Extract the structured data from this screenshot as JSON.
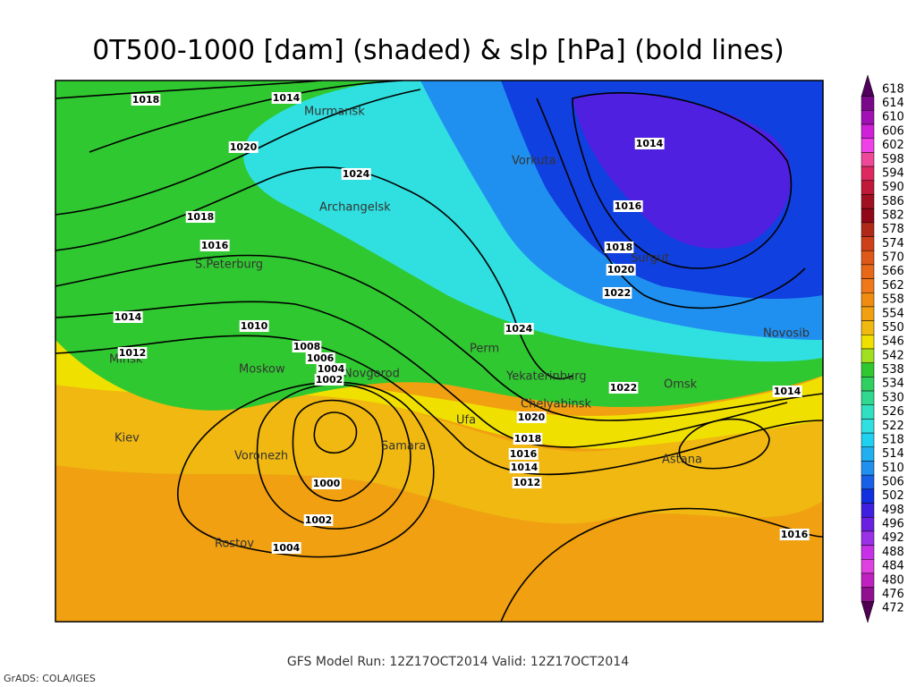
{
  "header": {
    "title": "0T500-1000 [dam] (shaded) & slp [hPa] (bold lines)"
  },
  "footer": {
    "run": "GFS Model Run: 12Z17OCT2014 Valid: 12Z17OCT2014",
    "credit": "GrADS: COLA/IGES"
  },
  "colorbar": [
    {
      "label": "618",
      "color": "#50005a"
    },
    {
      "label": "614",
      "color": "#7a0a8a"
    },
    {
      "label": "610",
      "color": "#a010b4"
    },
    {
      "label": "606",
      "color": "#d020d8"
    },
    {
      "label": "602",
      "color": "#f040e8"
    },
    {
      "label": "598",
      "color": "#f04898"
    },
    {
      "label": "594",
      "color": "#e02860"
    },
    {
      "label": "590",
      "color": "#c01838"
    },
    {
      "label": "586",
      "color": "#a01020"
    },
    {
      "label": "582",
      "color": "#900818"
    },
    {
      "label": "578",
      "color": "#b02818"
    },
    {
      "label": "574",
      "color": "#d04018"
    },
    {
      "label": "570",
      "color": "#e05818"
    },
    {
      "label": "566",
      "color": "#e86818"
    },
    {
      "label": "562",
      "color": "#f07818"
    },
    {
      "label": "558",
      "color": "#f08c10"
    },
    {
      "label": "554",
      "color": "#f0a010"
    },
    {
      "label": "550",
      "color": "#f0b810"
    },
    {
      "label": "546",
      "color": "#f0e000"
    },
    {
      "label": "542",
      "color": "#a0e020"
    },
    {
      "label": "538",
      "color": "#30c830"
    },
    {
      "label": "534",
      "color": "#30d060"
    },
    {
      "label": "530",
      "color": "#30d890"
    },
    {
      "label": "526",
      "color": "#30e0c0"
    },
    {
      "label": "522",
      "color": "#30e0e0"
    },
    {
      "label": "518",
      "color": "#20d0f0"
    },
    {
      "label": "514",
      "color": "#20b0f0"
    },
    {
      "label": "510",
      "color": "#2090f0"
    },
    {
      "label": "506",
      "color": "#1860e8"
    },
    {
      "label": "502",
      "color": "#1030e0"
    },
    {
      "label": "498",
      "color": "#4020e0"
    },
    {
      "label": "496",
      "color": "#6a20e0"
    },
    {
      "label": "492",
      "color": "#9a30e8"
    },
    {
      "label": "488",
      "color": "#c830e8"
    },
    {
      "label": "484",
      "color": "#e040e0"
    },
    {
      "label": "480",
      "color": "#c020c0"
    },
    {
      "label": "476",
      "color": "#901090"
    },
    {
      "label": "472",
      "color": "#500050"
    }
  ],
  "isobars": [
    "1018",
    "1014",
    "1020",
    "1024",
    "1018",
    "1016",
    "1014",
    "1010",
    "1012",
    "1008",
    "1006",
    "1004",
    "1002",
    "1014",
    "1016",
    "1018",
    "1020",
    "1022",
    "1024",
    "1022",
    "1014",
    "1020",
    "1018",
    "1016",
    "1014",
    "1012",
    "1000",
    "1002",
    "1004",
    "1016"
  ],
  "cities": [
    "Murmansk",
    "Archangelsk",
    "S.Peterburg",
    "Vorkuta",
    "Surgut",
    "Novosib",
    "Perm",
    "Minsk",
    "Moskow",
    "Novgorod",
    "Yekaterinburg",
    "Omsk",
    "Chelyabinsk",
    "Ufa",
    "Kiev",
    "Samara",
    "Voronezh",
    "Astana",
    "Rostov"
  ]
}
